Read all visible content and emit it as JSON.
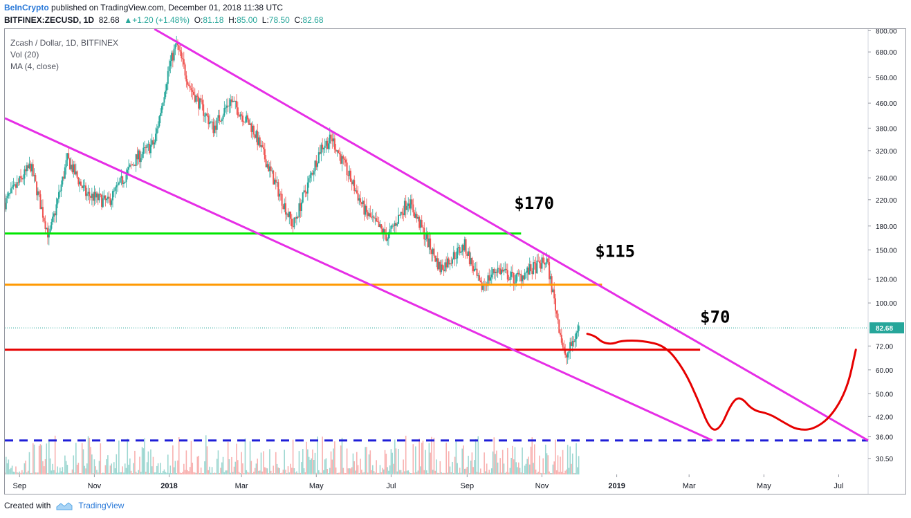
{
  "header": {
    "author": "BeInCrypto",
    "published_text": "published on TradingView.com, December 01, 2018 11:38 UTC",
    "symbol": "BITFINEX:ZECUSD, 1D",
    "last": "82.68",
    "change": "+1.20 (+1.48%)",
    "open_label": "O:",
    "open": "81.18",
    "high_label": "H:",
    "high": "85.00",
    "low_label": "L:",
    "low": "78.50",
    "close_label": "C:",
    "close": "82.68"
  },
  "legend": {
    "title": "Zcash / Dollar, 1D, BITFINEX",
    "vol": "Vol (20)",
    "ma": "MA (4, close)"
  },
  "footer": {
    "created_with": "Created with",
    "brand": "TradingView"
  },
  "colors": {
    "up": "#26a69a",
    "down": "#ef5350",
    "channel": "#e62ee6",
    "support170": "#00e600",
    "support115": "#ff9800",
    "support70": "#e60000",
    "dashed": "#1e1ed7",
    "projection": "#e60000"
  },
  "chart_data": {
    "type": "line",
    "title": "Zcash / Dollar, 1D, BITFINEX",
    "y_scale": "log",
    "ylim": [
      27,
      810
    ],
    "y_ticks": [
      800,
      680,
      560,
      460,
      380,
      320,
      260,
      220,
      180,
      150,
      120,
      100,
      82.68,
      72,
      60,
      50,
      42,
      36,
      30.5
    ],
    "y_tick_labels": [
      "800.00",
      "680.00",
      "560.00",
      "460.00",
      "380.00",
      "320.00",
      "260.00",
      "220.00",
      "180.00",
      "150.00",
      "120.00",
      "100.00",
      "82.68",
      "72.00",
      "60.00",
      "50.00",
      "42.00",
      "36.00",
      "30.50"
    ],
    "last_price_label": "82.68",
    "x_ticks": [
      "Sep",
      "Nov",
      "2018",
      "Mar",
      "May",
      "Jul",
      "Sep",
      "Nov",
      "2019",
      "Mar",
      "May",
      "Jul"
    ],
    "x_range": [
      "2017-08-20",
      "2019-07-25"
    ],
    "price_path": [
      {
        "date": "2017-08-20",
        "price": 215
      },
      {
        "date": "2017-09-10",
        "price": 285
      },
      {
        "date": "2017-09-25",
        "price": 165
      },
      {
        "date": "2017-10-10",
        "price": 300
      },
      {
        "date": "2017-10-25",
        "price": 230
      },
      {
        "date": "2017-11-12",
        "price": 215
      },
      {
        "date": "2017-12-05",
        "price": 300
      },
      {
        "date": "2017-12-20",
        "price": 340
      },
      {
        "date": "2018-01-01",
        "price": 610
      },
      {
        "date": "2018-01-07",
        "price": 720
      },
      {
        "date": "2018-01-18",
        "price": 520
      },
      {
        "date": "2018-02-06",
        "price": 380
      },
      {
        "date": "2018-02-20",
        "price": 470
      },
      {
        "date": "2018-03-10",
        "price": 380
      },
      {
        "date": "2018-04-01",
        "price": 230
      },
      {
        "date": "2018-04-12",
        "price": 180
      },
      {
        "date": "2018-05-05",
        "price": 330
      },
      {
        "date": "2018-05-14",
        "price": 350
      },
      {
        "date": "2018-06-10",
        "price": 200
      },
      {
        "date": "2018-06-28",
        "price": 165
      },
      {
        "date": "2018-07-15",
        "price": 220
      },
      {
        "date": "2018-08-10",
        "price": 130
      },
      {
        "date": "2018-08-30",
        "price": 155
      },
      {
        "date": "2018-09-12",
        "price": 112
      },
      {
        "date": "2018-09-25",
        "price": 130
      },
      {
        "date": "2018-10-10",
        "price": 120
      },
      {
        "date": "2018-11-05",
        "price": 138
      },
      {
        "date": "2018-11-20",
        "price": 65
      },
      {
        "date": "2018-12-01",
        "price": 82.68
      }
    ],
    "annotations": [
      {
        "label": "$170",
        "type": "horizontal-support",
        "price": 170,
        "from": "2017-08-20",
        "to": "2018-10-15",
        "color": "#00e600"
      },
      {
        "label": "$115",
        "type": "horizontal-support",
        "price": 115,
        "from": "2017-08-20",
        "to": "2018-12-20",
        "color": "#ff9800"
      },
      {
        "label": "$70",
        "type": "horizontal-support",
        "price": 70,
        "from": "2017-08-20",
        "to": "2019-03-10",
        "color": "#e60000"
      },
      {
        "label": "",
        "type": "horizontal-dashed",
        "price": 35,
        "from": "2017-08-20",
        "to": "2019-07-25",
        "color": "#1e1ed7"
      },
      {
        "label": "",
        "type": "channel-upper",
        "points": [
          {
            "date": "2017-12-20",
            "price": 810
          },
          {
            "date": "2019-07-25",
            "price": 35
          }
        ],
        "color": "#e62ee6"
      },
      {
        "label": "",
        "type": "channel-lower",
        "points": [
          {
            "date": "2017-08-20",
            "price": 410
          },
          {
            "date": "2019-03-20",
            "price": 35
          }
        ],
        "color": "#e62ee6"
      },
      {
        "label": "",
        "type": "projection",
        "points": [
          {
            "date": "2018-12-08",
            "price": 79
          },
          {
            "date": "2018-12-14",
            "price": 78
          },
          {
            "date": "2018-12-20",
            "price": 74
          },
          {
            "date": "2018-12-28",
            "price": 73
          },
          {
            "date": "2019-01-05",
            "price": 75
          },
          {
            "date": "2019-01-22",
            "price": 75
          },
          {
            "date": "2019-02-10",
            "price": 72
          },
          {
            "date": "2019-02-25",
            "price": 60
          },
          {
            "date": "2019-03-08",
            "price": 48
          },
          {
            "date": "2019-03-18",
            "price": 38
          },
          {
            "date": "2019-03-26",
            "price": 38
          },
          {
            "date": "2019-04-05",
            "price": 47
          },
          {
            "date": "2019-04-12",
            "price": 49
          },
          {
            "date": "2019-04-22",
            "price": 44
          },
          {
            "date": "2019-05-05",
            "price": 43
          },
          {
            "date": "2019-05-18",
            "price": 40
          },
          {
            "date": "2019-05-28",
            "price": 38
          },
          {
            "date": "2019-06-10",
            "price": 38
          },
          {
            "date": "2019-06-25",
            "price": 42
          },
          {
            "date": "2019-07-08",
            "price": 52
          },
          {
            "date": "2019-07-15",
            "price": 70
          }
        ],
        "color": "#e60000"
      }
    ]
  }
}
